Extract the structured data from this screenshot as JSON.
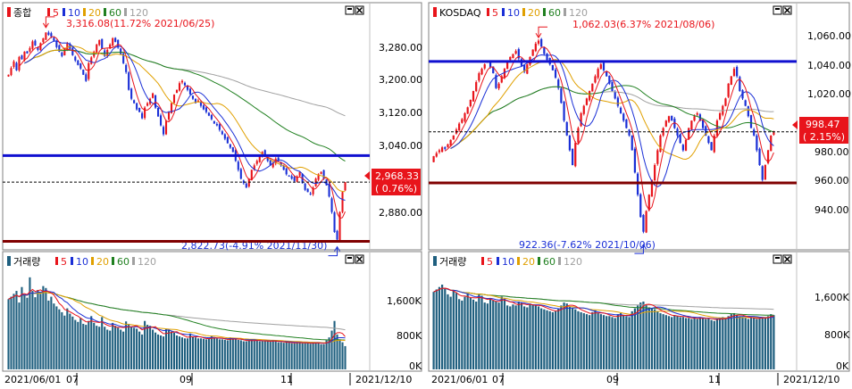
{
  "colors": {
    "up": "#e8141b",
    "down": "#1a2fd6",
    "ma5": "#e8141b",
    "ma10": "#1a2fd6",
    "ma20": "#e0a000",
    "ma60": "#208020",
    "ma120": "#a0a0a0",
    "volume": "#1f5f7f",
    "resistance": "#1010d0",
    "support": "#800000"
  },
  "bottom_axis": {
    "start_date": "2021/06/01",
    "month_labels": [
      "07",
      "09",
      "11"
    ],
    "end_date": "2021/12/10"
  },
  "panels": [
    {
      "id": "kospi",
      "price_legend": {
        "name": "종합",
        "ma_labels": [
          "5",
          "10",
          "20",
          "60",
          "120"
        ]
      },
      "volume_legend": {
        "name": "거래량",
        "ma_labels": [
          "5",
          "10",
          "20",
          "60",
          "120"
        ]
      },
      "price_ticks": [
        "3,280.00",
        "3,200.00",
        "3,120.00",
        "3,040.00",
        "2,880.00"
      ],
      "volume_ticks": [
        "1,600K",
        "800K",
        "0K"
      ],
      "current_price": "2,968.33",
      "current_change": "( 0.76%)",
      "high_annotation": "3,316.08(11.72% 2021/06/25)",
      "low_annotation": "2,822.73(-4.91% 2021/11/30)",
      "chart_data": {
        "type": "candlestick",
        "series": "종합",
        "date_range": [
          "2021/06/01",
          "2021/12/10"
        ],
        "high": {
          "value": 3316.08,
          "change_pct": 11.72,
          "date": "2021/06/25"
        },
        "low": {
          "value": 2822.73,
          "change_pct": -4.91,
          "date": "2021/11/30"
        },
        "last_close": 2968.33,
        "last_change_pct": 0.76,
        "resistance_line": 3028,
        "support_line": 2835,
        "price_range": [
          2820,
          3330
        ],
        "close": [
          3210,
          3225,
          3240,
          3220,
          3250,
          3245,
          3262,
          3258,
          3270,
          3285,
          3276,
          3266,
          3281,
          3292,
          3305,
          3300,
          3296,
          3286,
          3272,
          3262,
          3252,
          3270,
          3280,
          3268,
          3254,
          3242,
          3232,
          3224,
          3210,
          3196,
          3236,
          3249,
          3262,
          3278,
          3288,
          3268,
          3252,
          3266,
          3278,
          3292,
          3284,
          3271,
          3256,
          3236,
          3216,
          3176,
          3156,
          3146,
          3132,
          3126,
          3112,
          3136,
          3146,
          3156,
          3168,
          3136,
          3116,
          3096,
          3076,
          3106,
          3126,
          3146,
          3165,
          3176,
          3191,
          3196,
          3186,
          3176,
          3166,
          3156,
          3146,
          3152,
          3140,
          3132,
          3126,
          3118,
          3110,
          3100,
          3096,
          3086,
          3076,
          3066,
          3056,
          3046,
          3036,
          3016,
          2996,
          2976,
          2966,
          2956,
          2976,
          2996,
          3006,
          3016,
          3026,
          3036,
          3026,
          3016,
          3006,
          3011,
          3021,
          3016,
          3006,
          2996,
          2986,
          2981,
          2976,
          2971,
          2981,
          2991,
          2966,
          2951,
          2946,
          2941,
          2956,
          2976,
          2986,
          2991,
          2976,
          2961,
          2936,
          2901,
          2856,
          2839,
          2901,
          2946,
          2968
        ]
      },
      "volume_data": {
        "type": "bar",
        "values_k": [
          1450,
          1500,
          1560,
          1620,
          1380,
          1700,
          1550,
          1480,
          1900,
          1620,
          1490,
          1640,
          1560,
          1720,
          1680,
          1420,
          1500,
          1360,
          1300,
          1240,
          1180,
          1110,
          1260,
          1150,
          1090,
          1020,
          980,
          1060,
          940,
          920,
          1000,
          1100,
          960,
          900,
          880,
          1080,
          880,
          820,
          800,
          960,
          900,
          860,
          820,
          780,
          990,
          940,
          880,
          860,
          840,
          780,
          720,
          1000,
          920,
          900,
          820,
          760,
          720,
          700,
          680,
          840,
          810,
          780,
          760,
          700,
          680,
          660,
          640,
          640,
          740,
          680,
          660,
          640,
          640,
          630,
          620,
          640,
          680,
          660,
          640,
          620,
          620,
          610,
          600,
          660,
          640,
          620,
          610,
          600,
          580,
          580,
          600,
          610,
          600,
          590,
          580,
          580,
          590,
          580,
          570,
          600,
          580,
          560,
          560,
          550,
          560,
          550,
          540,
          540,
          560,
          560,
          540,
          540,
          540,
          530,
          560,
          560,
          540,
          520,
          520,
          600,
          660,
          800,
          1000,
          720,
          620,
          560,
          480
        ],
        "vol_range": [
          0,
          2100
        ]
      }
    },
    {
      "id": "kosdaq",
      "price_legend": {
        "name": "KOSDAQ",
        "ma_labels": [
          "5",
          "10",
          "20",
          "60",
          "120"
        ]
      },
      "volume_legend": {
        "name": "거래량",
        "ma_labels": [
          "5",
          "10",
          "20",
          "60",
          "120"
        ]
      },
      "price_ticks": [
        "1,060.00",
        "1,040.00",
        "1,020.00",
        "980.00",
        "960.00",
        "940.00"
      ],
      "volume_ticks": [
        "1,600K",
        "800K",
        "0K"
      ],
      "current_price": "998.47",
      "current_change": "( 2.15%)",
      "high_annotation": "1,062.03(6.37% 2021/08/06)",
      "low_annotation": "922.36(-7.62% 2021/10/06)",
      "chart_data": {
        "type": "candlestick",
        "series": "KOSDAQ",
        "date_range": [
          "2021/06/01",
          "2021/12/10"
        ],
        "high": {
          "value": 1062.03,
          "change_pct": 6.37,
          "date": "2021/08/06"
        },
        "low": {
          "value": 922.36,
          "change_pct": -7.62,
          "date": "2021/10/06"
        },
        "last_close": 998.47,
        "last_change_pct": 2.15,
        "resistance_line": 1046,
        "support_line": 964,
        "price_range": [
          920,
          1073
        ],
        "close": [
          982,
          984,
          986,
          988,
          987,
          990,
          993,
          996,
          1000,
          1004,
          1007,
          1011,
          1015,
          1020,
          1026,
          1032,
          1038,
          1041,
          1044,
          1046,
          1042,
          1038,
          1028,
          1031,
          1036,
          1041,
          1046,
          1049,
          1051,
          1053,
          1048,
          1043,
          1039,
          1044,
          1049,
          1054,
          1058,
          1060,
          1056,
          1051,
          1047,
          1044,
          1040,
          1035,
          1028,
          1018,
          1006,
          996,
          986,
          976,
          991,
          1001,
          1011,
          1016,
          1021,
          1026,
          1031,
          1036,
          1041,
          1044,
          1040,
          1036,
          1031,
          1026,
          1021,
          1016,
          1011,
          1006,
          1001,
          996,
          986,
          971,
          956,
          941,
          931,
          945,
          956,
          966,
          976,
          986,
          996,
          1001,
          1006,
          1009,
          1006,
          1001,
          996,
          991,
          986,
          993,
          1001,
          1006,
          1009,
          1011,
          1006,
          1001,
          996,
          991,
          986,
          996,
          1006,
          1011,
          1016,
          1021,
          1031,
          1036,
          1041,
          1036,
          1026,
          1021,
          1016,
          1009,
          1001,
          996,
          986,
          976,
          966,
          976,
          986,
          996,
          998
        ]
      },
      "volume_data": {
        "type": "bar",
        "values_k": [
          1600,
          1650,
          1700,
          1750,
          1680,
          1550,
          1500,
          1620,
          1580,
          1450,
          1420,
          1500,
          1560,
          1480,
          1440,
          1400,
          1560,
          1520,
          1380,
          1360,
          1460,
          1420,
          1400,
          1380,
          1500,
          1460,
          1320,
          1300,
          1340,
          1320,
          1400,
          1380,
          1300,
          1280,
          1360,
          1340,
          1320,
          1300,
          1260,
          1240,
          1220,
          1200,
          1180,
          1200,
          1260,
          1320,
          1380,
          1360,
          1300,
          1260,
          1240,
          1200,
          1180,
          1160,
          1140,
          1120,
          1180,
          1220,
          1160,
          1140,
          1120,
          1100,
          1100,
          1080,
          1060,
          1140,
          1160,
          1120,
          1100,
          1080,
          1200,
          1260,
          1320,
          1380,
          1400,
          1340,
          1280,
          1260,
          1240,
          1200,
          1160,
          1140,
          1120,
          1100,
          1080,
          1120,
          1100,
          1080,
          1080,
          1060,
          1060,
          1040,
          1060,
          1040,
          1080,
          1060,
          1040,
          1060,
          1020,
          1000,
          1040,
          1060,
          1080,
          1060,
          1100,
          1140,
          1160,
          1120,
          1100,
          1080,
          1060,
          1040,
          1080,
          1060,
          1040,
          1060,
          1080,
          1060,
          1100,
          1140,
          1120
        ],
        "vol_range": [
          0,
          2100
        ]
      }
    }
  ]
}
